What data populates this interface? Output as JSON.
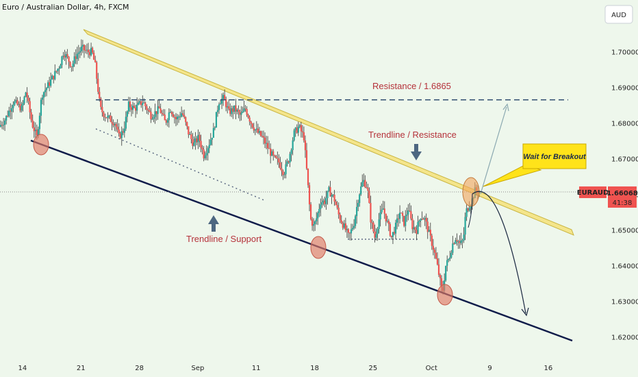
{
  "chart_data": {
    "type": "candlestick",
    "title": "Euro / Australian Dollar, 4h, FXCM",
    "currency_button": "AUD",
    "symbol": "EURAUD",
    "last_price": "1.66068",
    "countdown": "41:38",
    "last_price_value": 1.66068,
    "ylim": [
      1.6155,
      1.7145
    ],
    "y_ticks": [
      "1.70000",
      "1.69000",
      "1.68000",
      "1.67000",
      "1.66000",
      "1.65000",
      "1.64000",
      "1.63000",
      "1.62000"
    ],
    "y_tick_values": [
      1.7,
      1.69,
      1.68,
      1.67,
      1.66,
      1.65,
      1.64,
      1.63,
      1.62
    ],
    "x_ticks": [
      "14",
      "21",
      "28",
      "Sep",
      "11",
      "18",
      "25",
      "Oct",
      "9",
      "16"
    ],
    "x_tick_days": [
      0,
      7,
      14,
      21,
      28,
      35,
      42,
      49,
      56,
      63
    ],
    "xlim": [
      -2.7,
      66.7
    ],
    "price_path": [
      [
        -2.7,
        1.679
      ],
      [
        -2.0,
        1.681
      ],
      [
        -1.0,
        1.686
      ],
      [
        0.0,
        1.684
      ],
      [
        0.5,
        1.689
      ],
      [
        1.2,
        1.68
      ],
      [
        1.8,
        1.676
      ],
      [
        2.4,
        1.688
      ],
      [
        3.0,
        1.69
      ],
      [
        4.0,
        1.694
      ],
      [
        4.5,
        1.696
      ],
      [
        5.0,
        1.7
      ],
      [
        5.5,
        1.698
      ],
      [
        6.0,
        1.696
      ],
      [
        6.5,
        1.699
      ],
      [
        7.2,
        1.701
      ],
      [
        7.8,
        1.7
      ],
      [
        8.4,
        1.7
      ],
      [
        8.8,
        1.696
      ],
      [
        9.4,
        1.684
      ],
      [
        10.0,
        1.682
      ],
      [
        10.6,
        1.681
      ],
      [
        11.2,
        1.68
      ],
      [
        11.6,
        1.676
      ],
      [
        12.2,
        1.678
      ],
      [
        12.8,
        1.685
      ],
      [
        13.5,
        1.684
      ],
      [
        14.5,
        1.686
      ],
      [
        15.5,
        1.682
      ],
      [
        16.5,
        1.684
      ],
      [
        17.2,
        1.68
      ],
      [
        17.8,
        1.684
      ],
      [
        18.5,
        1.681
      ],
      [
        19.2,
        1.683
      ],
      [
        20.0,
        1.677
      ],
      [
        20.6,
        1.674
      ],
      [
        21.2,
        1.676
      ],
      [
        21.8,
        1.671
      ],
      [
        22.4,
        1.674
      ],
      [
        23.0,
        1.678
      ],
      [
        23.6,
        1.686
      ],
      [
        24.2,
        1.687
      ],
      [
        24.8,
        1.683
      ],
      [
        25.5,
        1.684
      ],
      [
        26.2,
        1.682
      ],
      [
        26.8,
        1.684
      ],
      [
        27.5,
        1.68
      ],
      [
        28.0,
        1.678
      ],
      [
        28.8,
        1.676
      ],
      [
        29.5,
        1.673
      ],
      [
        30.2,
        1.67
      ],
      [
        30.8,
        1.669
      ],
      [
        31.4,
        1.666
      ],
      [
        32.0,
        1.67
      ],
      [
        32.6,
        1.677
      ],
      [
        33.2,
        1.679
      ],
      [
        33.8,
        1.676
      ],
      [
        34.2,
        1.665
      ],
      [
        34.6,
        1.653
      ],
      [
        35.0,
        1.651
      ],
      [
        35.4,
        1.654
      ],
      [
        35.8,
        1.658
      ],
      [
        36.3,
        1.658
      ],
      [
        36.8,
        1.661
      ],
      [
        37.4,
        1.659
      ],
      [
        38.0,
        1.654
      ],
      [
        38.6,
        1.651
      ],
      [
        39.2,
        1.648
      ],
      [
        39.8,
        1.652
      ],
      [
        40.4,
        1.66
      ],
      [
        40.9,
        1.664
      ],
      [
        41.4,
        1.662
      ],
      [
        41.8,
        1.653
      ],
      [
        42.3,
        1.648
      ],
      [
        42.8,
        1.653
      ],
      [
        43.3,
        1.656
      ],
      [
        43.8,
        1.652
      ],
      [
        44.3,
        1.648
      ],
      [
        44.8,
        1.651
      ],
      [
        45.3,
        1.655
      ],
      [
        45.8,
        1.652
      ],
      [
        46.3,
        1.656
      ],
      [
        46.8,
        1.651
      ],
      [
        47.3,
        1.65
      ],
      [
        47.8,
        1.654
      ],
      [
        48.3,
        1.653
      ],
      [
        48.8,
        1.649
      ],
      [
        49.3,
        1.645
      ],
      [
        49.7,
        1.641
      ],
      [
        50.1,
        1.636
      ],
      [
        50.4,
        1.632
      ],
      [
        50.8,
        1.64
      ],
      [
        51.2,
        1.642
      ],
      [
        51.6,
        1.646
      ],
      [
        52.0,
        1.648
      ],
      [
        52.5,
        1.646
      ],
      [
        52.9,
        1.647
      ],
      [
        53.2,
        1.655
      ],
      [
        53.6,
        1.657
      ],
      [
        53.9,
        1.658
      ],
      [
        54.3,
        1.661
      ],
      [
        54.7,
        1.661
      ]
    ],
    "annotations": {
      "resistance_label": "Resistance / 1.6865",
      "resistance_value": 1.6865,
      "trendline_resistance_label": "Trendline / Resistance",
      "trendline_support_label": "Trendline / Support",
      "callout": "Wait for Breakout"
    },
    "colors": {
      "background": "#eef7ec",
      "bull": "#26a69a",
      "bear": "#ef5350",
      "wick": "#333333",
      "band": "#f5e27a",
      "support": "#101c4a",
      "resistance": "#2c4a6e",
      "label": "#b5323a",
      "callout": "#ffe31a",
      "price_tag": "#ef5350"
    }
  }
}
